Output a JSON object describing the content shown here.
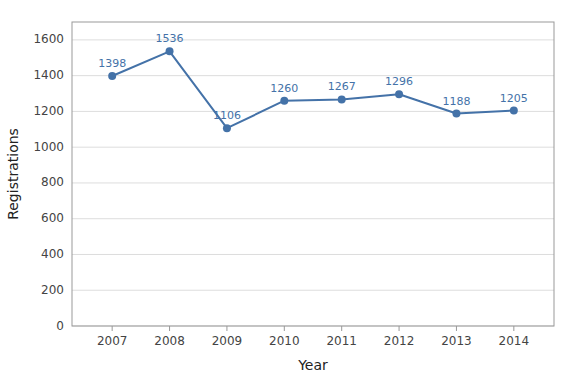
{
  "chart_data": {
    "type": "line",
    "x": [
      2007,
      2008,
      2009,
      2010,
      2011,
      2012,
      2013,
      2014
    ],
    "values": [
      1398,
      1536,
      1106,
      1260,
      1267,
      1296,
      1188,
      1205
    ],
    "color": "#4472a8",
    "marker": "circle",
    "xlabel": "Year",
    "ylabel": "Registrations",
    "xlim": [
      2006.3,
      2014.7
    ],
    "xticks": [
      2007,
      2008,
      2009,
      2010,
      2011,
      2012,
      2013,
      2014
    ],
    "ylim": [
      0,
      1700
    ],
    "yticks": [
      0,
      200,
      400,
      600,
      800,
      1000,
      1200,
      1400,
      1600
    ],
    "grid": true,
    "data_labels": true
  }
}
